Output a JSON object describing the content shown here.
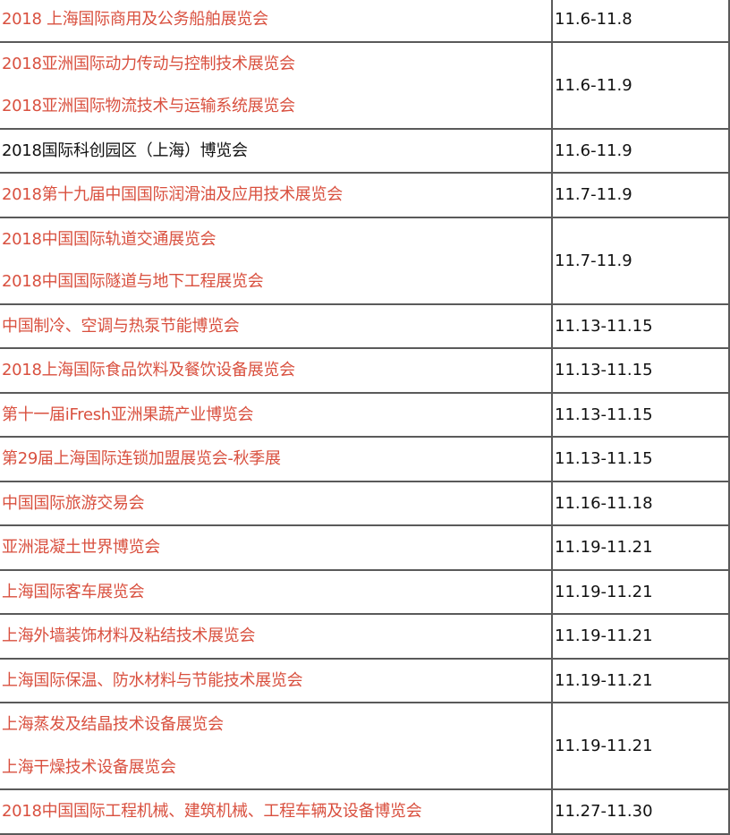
{
  "accent_color": "#d9503f",
  "rows": [
    {
      "names": [
        "2018 上海国际商用及公务船舶展览会"
      ],
      "date": "11.6-11.8",
      "color": "red"
    },
    {
      "names": [
        "2018亚洲国际动力传动与控制技术展览会",
        "2018亚洲国际物流技术与运输系统展览会"
      ],
      "date": "11.6-11.9",
      "color": "red"
    },
    {
      "names": [
        "2018国际科创园区（上海）博览会"
      ],
      "date": "11.6-11.9",
      "color": "black"
    },
    {
      "names": [
        "2018第十九届中国国际润滑油及应用技术展览会"
      ],
      "date": "11.7-11.9",
      "color": "red"
    },
    {
      "names": [
        "2018中国国际轨道交通展览会",
        "2018中国国际隧道与地下工程展览会"
      ],
      "date": "11.7-11.9",
      "color": "red"
    },
    {
      "names": [
        "中国制冷、空调与热泵节能博览会"
      ],
      "date": "11.13-11.15",
      "color": "red"
    },
    {
      "names": [
        "2018上海国际食品饮料及餐饮设备展览会"
      ],
      "date": "11.13-11.15",
      "color": "red"
    },
    {
      "names": [
        "第十一届iFresh亚洲果蔬产业博览会"
      ],
      "date": "11.13-11.15",
      "color": "red"
    },
    {
      "names": [
        "第29届上海国际连锁加盟展览会-秋季展"
      ],
      "date": "11.13-11.15",
      "color": "red"
    },
    {
      "names": [
        "中国国际旅游交易会"
      ],
      "date": "11.16-11.18",
      "color": "red"
    },
    {
      "names": [
        "亚洲混凝土世界博览会"
      ],
      "date": "11.19-11.21",
      "color": "red"
    },
    {
      "names": [
        "上海国际客车展览会"
      ],
      "date": "11.19-11.21",
      "color": "red"
    },
    {
      "names": [
        "上海外墙装饰材料及粘结技术展览会"
      ],
      "date": "11.19-11.21",
      "color": "red"
    },
    {
      "names": [
        "上海国际保温、防水材料与节能技术展览会"
      ],
      "date": "11.19-11.21",
      "color": "red"
    },
    {
      "names": [
        "上海蒸发及结晶技术设备展览会",
        "上海干燥技术设备展览会"
      ],
      "date": "11.19-11.21",
      "color": "red"
    },
    {
      "names": [
        "2018中国国际工程机械、建筑机械、工程车辆及设备博览会"
      ],
      "date": "11.27-11.30",
      "color": "red"
    }
  ]
}
